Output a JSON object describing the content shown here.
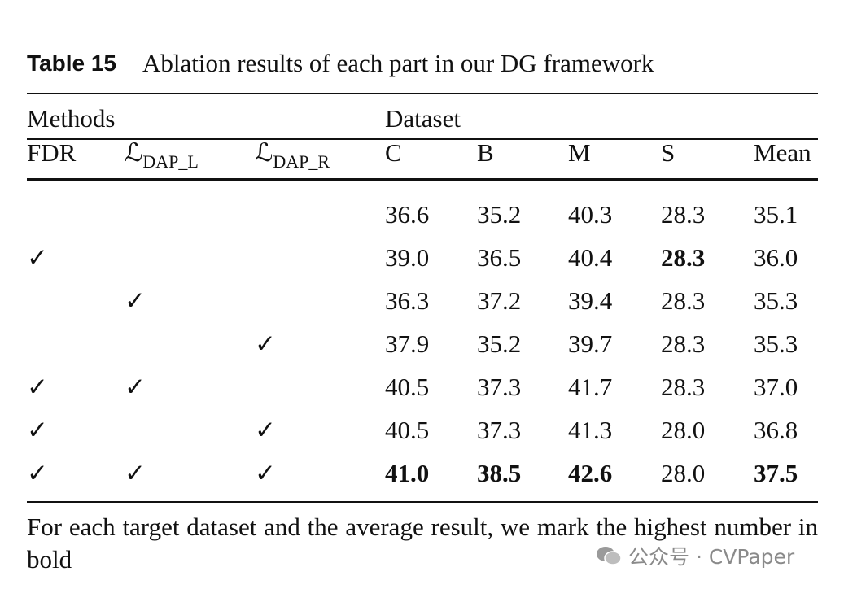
{
  "caption": {
    "label": "Table 15",
    "text": "Ablation results of each part in our DG framework"
  },
  "table": {
    "group_headers": [
      "Methods",
      "Dataset"
    ],
    "columns": [
      {
        "text": "FDR"
      },
      {
        "text": "ℒ",
        "sub": "DAP_L"
      },
      {
        "text": "ℒ",
        "sub": "DAP_R"
      },
      {
        "text": "C"
      },
      {
        "text": "B"
      },
      {
        "text": "M"
      },
      {
        "text": "S"
      },
      {
        "text": "Mean"
      }
    ],
    "rows": [
      [
        null,
        null,
        null,
        "36.6",
        "35.2",
        "40.3",
        "28.3",
        "35.1"
      ],
      [
        "✓",
        null,
        null,
        "39.0",
        "36.5",
        "40.4",
        {
          "text": "28.3",
          "bold": true
        },
        "36.0"
      ],
      [
        null,
        "✓",
        null,
        "36.3",
        "37.2",
        "39.4",
        "28.3",
        "35.3"
      ],
      [
        null,
        null,
        "✓",
        "37.9",
        "35.2",
        "39.7",
        "28.3",
        "35.3"
      ],
      [
        "✓",
        "✓",
        null,
        "40.5",
        "37.3",
        "41.7",
        "28.3",
        "37.0"
      ],
      [
        "✓",
        null,
        "✓",
        "40.5",
        "37.3",
        "41.3",
        "28.0",
        "36.8"
      ],
      [
        "✓",
        "✓",
        "✓",
        {
          "text": "41.0",
          "bold": true
        },
        {
          "text": "38.5",
          "bold": true
        },
        {
          "text": "42.6",
          "bold": true
        },
        "28.0",
        {
          "text": "37.5",
          "bold": true
        }
      ]
    ]
  },
  "footnote": "For each target dataset and the average result, we mark the highest number in bold",
  "watermark": "公众号 · CVPaper"
}
